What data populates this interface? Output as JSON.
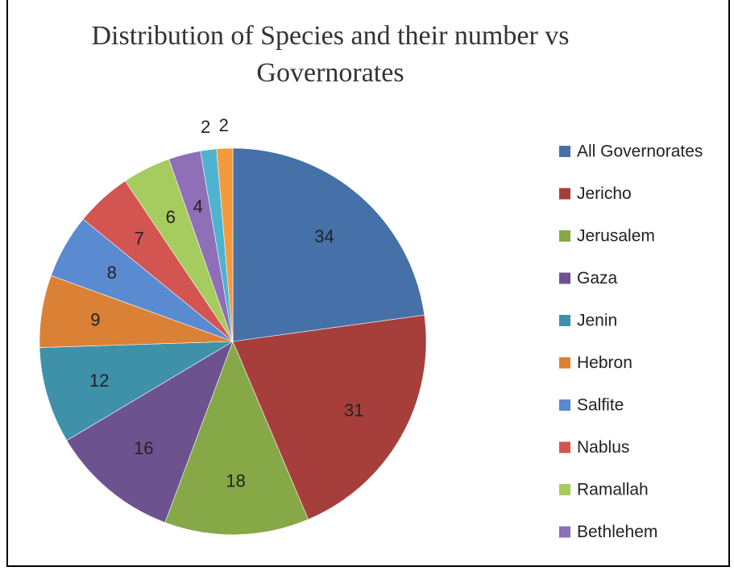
{
  "chart_data": {
    "type": "pie",
    "title": [
      "Distribution of Species and their number vs",
      "Governorates"
    ],
    "legend_position": "right",
    "label_color": "#222222",
    "series": [
      {
        "name": "All Governorates",
        "value": 34,
        "color": "#4570A8"
      },
      {
        "name": "Jericho",
        "value": 31,
        "color": "#A63F3C"
      },
      {
        "name": "Jerusalem",
        "value": 18,
        "color": "#86A846"
      },
      {
        "name": "Gaza",
        "value": 16,
        "color": "#6D5290"
      },
      {
        "name": "Jenin",
        "value": 12,
        "color": "#3E91A8"
      },
      {
        "name": "Hebron",
        "value": 9,
        "color": "#DA8136"
      },
      {
        "name": "Salfite",
        "value": 8,
        "color": "#5A8AD0"
      },
      {
        "name": "Nablus",
        "value": 7,
        "color": "#D25552"
      },
      {
        "name": "Ramallah",
        "value": 6,
        "color": "#A6CB5E"
      },
      {
        "name": "Bethlehem",
        "value": 4,
        "color": "#8F6FB8"
      },
      {
        "name": "",
        "value": 2,
        "color": "#4FB3D0"
      },
      {
        "name": "",
        "value": 2,
        "color": "#F49A3E"
      }
    ]
  }
}
